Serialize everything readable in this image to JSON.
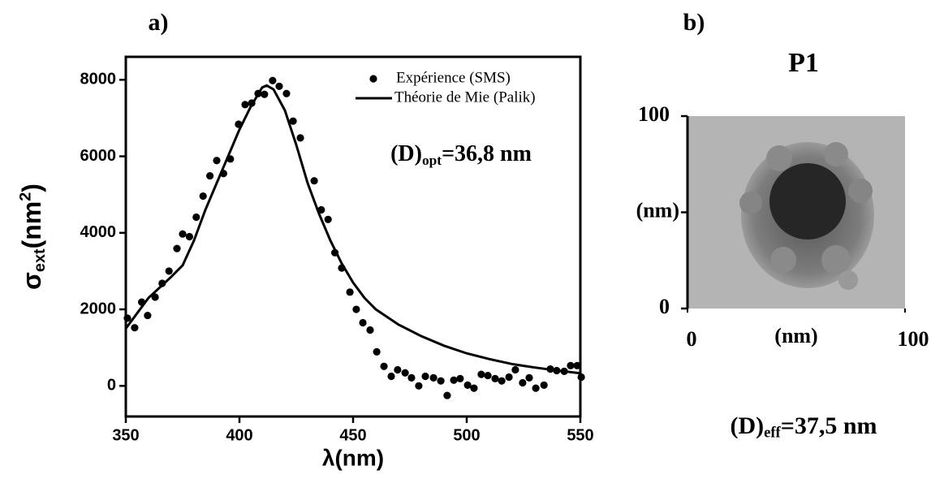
{
  "chart_data": [
    {
      "type": "scatter_line",
      "panel": "a)",
      "xlabel": "λ(nm)",
      "ylabel": [
        "σ",
        "ext",
        "(nm",
        "2",
        ")"
      ],
      "annotation": [
        "(D)",
        "opt",
        "=36,8 nm"
      ],
      "xlim": [
        350,
        550
      ],
      "ylim": [
        -800,
        8600
      ],
      "xticks": [
        350,
        400,
        450,
        500,
        550
      ],
      "yticks": [
        0,
        2000,
        4000,
        6000,
        8000
      ],
      "legend": "top-right",
      "series": [
        {
          "name": "Expérience (SMS)",
          "kind": "scatter",
          "color": "#000000",
          "x": [
            350.7,
            353.9,
            357,
            359.6,
            362.9,
            366,
            369,
            372.5,
            375,
            378,
            381,
            384,
            387,
            390,
            393,
            396,
            399.6,
            402.5,
            405.4,
            408.2,
            411,
            414.6,
            417.5,
            420.7,
            423.6,
            426.8,
            432.9,
            436,
            439,
            442,
            445,
            448.6,
            451.4,
            454.3,
            457.5,
            460.4,
            463.6,
            466.8,
            469.6,
            472.9,
            475.7,
            478.9,
            481.8,
            485.4,
            488.6,
            491.4,
            494.3,
            497.1,
            500.4,
            503.2,
            506.4,
            509.3,
            512.5,
            515.4,
            518.6,
            521.4,
            524.6,
            527.5,
            530.4,
            534,
            536.8,
            539.6,
            542.9,
            545.7,
            548.6,
            550.4
          ],
          "values": [
            1770,
            1520,
            2190,
            1840,
            2320,
            2680,
            3000,
            3590,
            3970,
            3900,
            4410,
            4960,
            5490,
            5890,
            5550,
            5930,
            6840,
            7350,
            7390,
            7640,
            7620,
            7980,
            7830,
            7640,
            6920,
            6480,
            5360,
            4600,
            4350,
            3480,
            3080,
            2450,
            2000,
            1650,
            1460,
            890,
            510,
            250,
            420,
            340,
            210,
            0,
            250,
            210,
            130,
            -250,
            150,
            190,
            20,
            -60,
            300,
            270,
            190,
            130,
            230,
            420,
            80,
            210,
            -60,
            20,
            440,
            400,
            380,
            530,
            530,
            230
          ]
        },
        {
          "name": "Théorie de Mie (Palik)",
          "kind": "line",
          "color": "#000000",
          "x": [
            350,
            360,
            370,
            375,
            380,
            385,
            390,
            395,
            400,
            405,
            410,
            412,
            415,
            420,
            425,
            430,
            435,
            440,
            445,
            450,
            455,
            460,
            470,
            480,
            490,
            500,
            510,
            520,
            530,
            540,
            550
          ],
          "values": [
            1500,
            2300,
            2850,
            3150,
            3800,
            4600,
            5300,
            6000,
            6700,
            7300,
            7800,
            7850,
            7750,
            7200,
            6300,
            5300,
            4500,
            3800,
            3200,
            2700,
            2300,
            2000,
            1600,
            1300,
            1050,
            850,
            700,
            570,
            480,
            400,
            330
          ]
        }
      ]
    },
    {
      "type": "image",
      "panel": "b)",
      "title": "P1",
      "xlabel": "(nm)",
      "ylabel": "(nm)",
      "xlim": [
        0,
        100
      ],
      "ylim": [
        0,
        100
      ],
      "xticks": [
        0,
        100
      ],
      "yticks": [
        0,
        100
      ],
      "caption": [
        "(D)",
        "eff",
        "=37,5 nm"
      ]
    }
  ]
}
